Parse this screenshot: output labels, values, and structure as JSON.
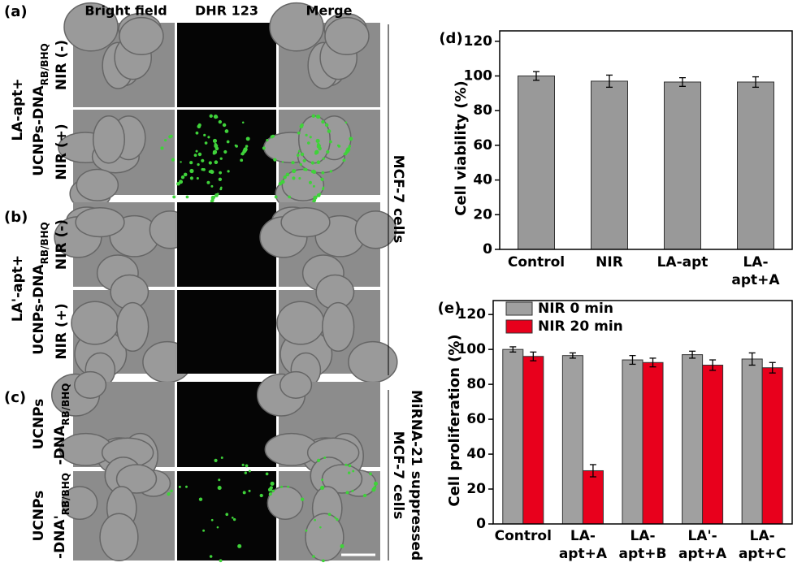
{
  "figure": {
    "panel_labels": [
      "(a)",
      "(b)",
      "(c)"
    ],
    "column_headers": [
      "Bright field",
      "DHR 123",
      "Merge"
    ],
    "row_groups": [
      {
        "lines": [
          [
            "LA-apt+"
          ],
          [
            "UCNPs-DNA",
            "RB/BHQ"
          ]
        ],
        "rows": [
          "NIR (-)",
          "NIR (+)"
        ]
      },
      {
        "lines": [
          [
            "LA'-apt+"
          ],
          [
            "UCNPs-DNA",
            "RB/BHQ"
          ]
        ],
        "rows": [
          "NIR (-)",
          "NIR (+)"
        ]
      },
      {
        "row_lines": [
          [
            [
              "UCNPs"
            ],
            [
              "-DNA",
              "RB/BHQ"
            ]
          ],
          [
            [
              "UCNPs"
            ],
            [
              "-DNA'",
              "RB/BHQ"
            ]
          ]
        ]
      }
    ],
    "side_labels": [
      [
        "MCF-7 cells"
      ],
      [
        "MiRNA-21 suppressed",
        "MCF-7 cells"
      ]
    ]
  },
  "chart_data": [
    {
      "type": "bar",
      "panel_label": "(d)",
      "y_label": "Cell viability (%)",
      "categories": [
        [
          "Control"
        ],
        [
          "NIR"
        ],
        [
          "LA-apt"
        ],
        [
          "LA-",
          "apt+A"
        ]
      ],
      "values": [
        100,
        97,
        96.5,
        96.5
      ],
      "errors": [
        2.5,
        3.5,
        2.5,
        3
      ],
      "color": "#999999",
      "ylim": [
        0,
        126
      ],
      "yticks": [
        0,
        20,
        40,
        60,
        80,
        100,
        120
      ]
    },
    {
      "type": "grouped_bar",
      "panel_label": "(e)",
      "y_label": "Cell proliferation (%)",
      "categories": [
        [
          "Control"
        ],
        [
          "LA-",
          "apt+A"
        ],
        [
          "LA-",
          "apt+B"
        ],
        [
          "LA'-",
          "apt+A"
        ],
        [
          "LA-",
          "apt+C"
        ]
      ],
      "series": [
        {
          "name": "NIR 0 min",
          "color": "#a0a0a0",
          "values": [
            100,
            96.5,
            94,
            97,
            94.5
          ],
          "errors": [
            1.5,
            1.5,
            2.5,
            2,
            3.5
          ]
        },
        {
          "name": "NIR 20 min",
          "color": "#e8001c",
          "values": [
            96,
            30.5,
            92.5,
            91,
            89.5
          ],
          "errors": [
            2.5,
            3.5,
            2.5,
            3,
            3
          ]
        }
      ],
      "ylim": [
        0,
        128
      ],
      "yticks": [
        0,
        20,
        40,
        60,
        80,
        100,
        120
      ],
      "legend": "top-left"
    }
  ]
}
